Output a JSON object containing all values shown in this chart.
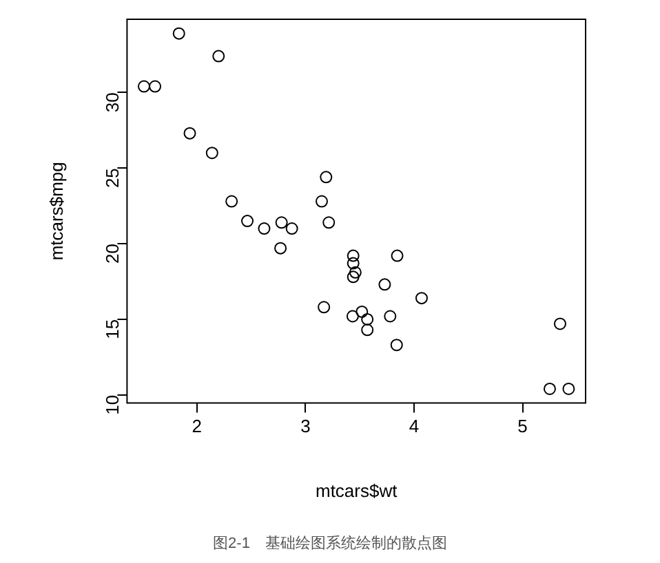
{
  "chart_data": {
    "type": "scatter",
    "xlabel": "mtcars$wt",
    "ylabel": "mtcars$mpg",
    "annotations": [
      "图2-1　基础绘图系统绘制的散点图"
    ],
    "x": [
      2.62,
      2.875,
      2.32,
      3.215,
      3.44,
      3.46,
      3.57,
      3.19,
      3.15,
      3.44,
      3.44,
      4.07,
      3.73,
      3.78,
      5.25,
      5.424,
      5.345,
      2.2,
      1.615,
      1.835,
      2.465,
      3.52,
      3.435,
      3.84,
      3.845,
      1.935,
      2.14,
      1.513,
      3.17,
      2.77,
      3.57,
      2.78
    ],
    "values": [
      21.0,
      21.0,
      22.8,
      21.4,
      18.7,
      18.1,
      14.3,
      24.4,
      22.8,
      19.2,
      17.8,
      16.4,
      17.3,
      15.2,
      10.4,
      10.4,
      14.7,
      32.4,
      30.4,
      33.9,
      21.5,
      15.5,
      15.2,
      13.3,
      19.2,
      27.3,
      26.0,
      30.4,
      15.8,
      19.7,
      15.0,
      21.4
    ],
    "color": "#000000",
    "marker": "circle",
    "grid": false,
    "legend": false,
    "xlim": [
      1.357,
      5.58
    ],
    "xticks": [
      2,
      3,
      4,
      5
    ],
    "ylim": [
      9.46,
      34.84
    ],
    "yticks": [
      10,
      15,
      20,
      25,
      30
    ]
  }
}
